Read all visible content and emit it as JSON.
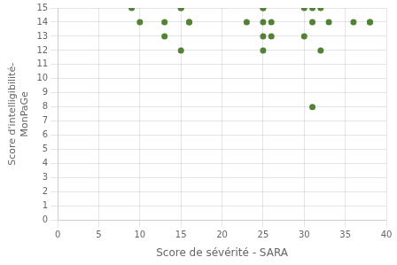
{
  "chart_data": {
    "type": "scatter",
    "x": [
      9,
      10,
      13,
      13,
      15,
      15,
      16,
      16,
      15,
      23,
      25,
      25,
      25,
      25,
      25,
      26,
      26,
      30,
      30,
      31,
      31,
      31,
      32,
      32,
      33,
      36,
      38,
      38
    ],
    "values": [
      15,
      14,
      13,
      14,
      15,
      15,
      14,
      14,
      12,
      14,
      15,
      15,
      14,
      13,
      12,
      14,
      13,
      15,
      13,
      15,
      14,
      8,
      15,
      12,
      14,
      14,
      14,
      14
    ],
    "xlabel": "Score de sévérité - SARA",
    "ylabel": "Score d'intelligibilité-\nMonPaGe",
    "xlim": [
      0,
      40
    ],
    "ylim": [
      0,
      15
    ],
    "xticks": [
      0,
      5,
      10,
      15,
      20,
      25,
      30,
      35,
      40
    ],
    "yticks": [
      0,
      1,
      2,
      3,
      4,
      5,
      6,
      7,
      8,
      9,
      10,
      11,
      12,
      13,
      14,
      15
    ],
    "color": "#538135",
    "grid": true
  }
}
